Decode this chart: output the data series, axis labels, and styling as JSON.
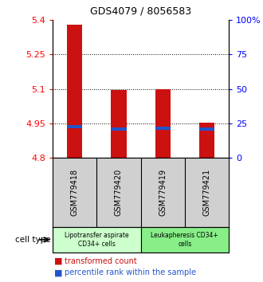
{
  "title": "GDS4079 / 8056583",
  "samples": [
    "GSM779418",
    "GSM779420",
    "GSM779419",
    "GSM779421"
  ],
  "red_bar_tops": [
    5.38,
    5.095,
    5.1,
    4.953
  ],
  "blue_dot_values": [
    4.935,
    4.926,
    4.93,
    4.926
  ],
  "bar_base": 4.8,
  "ylim": [
    4.8,
    5.4
  ],
  "left_yticks": [
    4.8,
    4.95,
    5.1,
    5.25,
    5.4
  ],
  "right_yticks": [
    0,
    25,
    50,
    75,
    100
  ],
  "right_ylabels": [
    "0",
    "25",
    "50",
    "75",
    "100%"
  ],
  "bar_color": "#cc1111",
  "blue_color": "#2255cc",
  "bar_width": 0.35,
  "cell_type_groups": [
    {
      "label": "Lipotransfer aspirate\nCD34+ cells",
      "indices": [
        0,
        1
      ],
      "color": "#ccffcc"
    },
    {
      "label": "Leukapheresis CD34+\ncells",
      "indices": [
        2,
        3
      ],
      "color": "#88ee88"
    }
  ],
  "legend_red": "transformed count",
  "legend_blue": "percentile rank within the sample",
  "cell_type_label": "cell type",
  "grid_lines": [
    4.95,
    5.1,
    5.25
  ],
  "bg_color_plot": "#ffffff",
  "bg_color_sample": "#d0d0d0"
}
